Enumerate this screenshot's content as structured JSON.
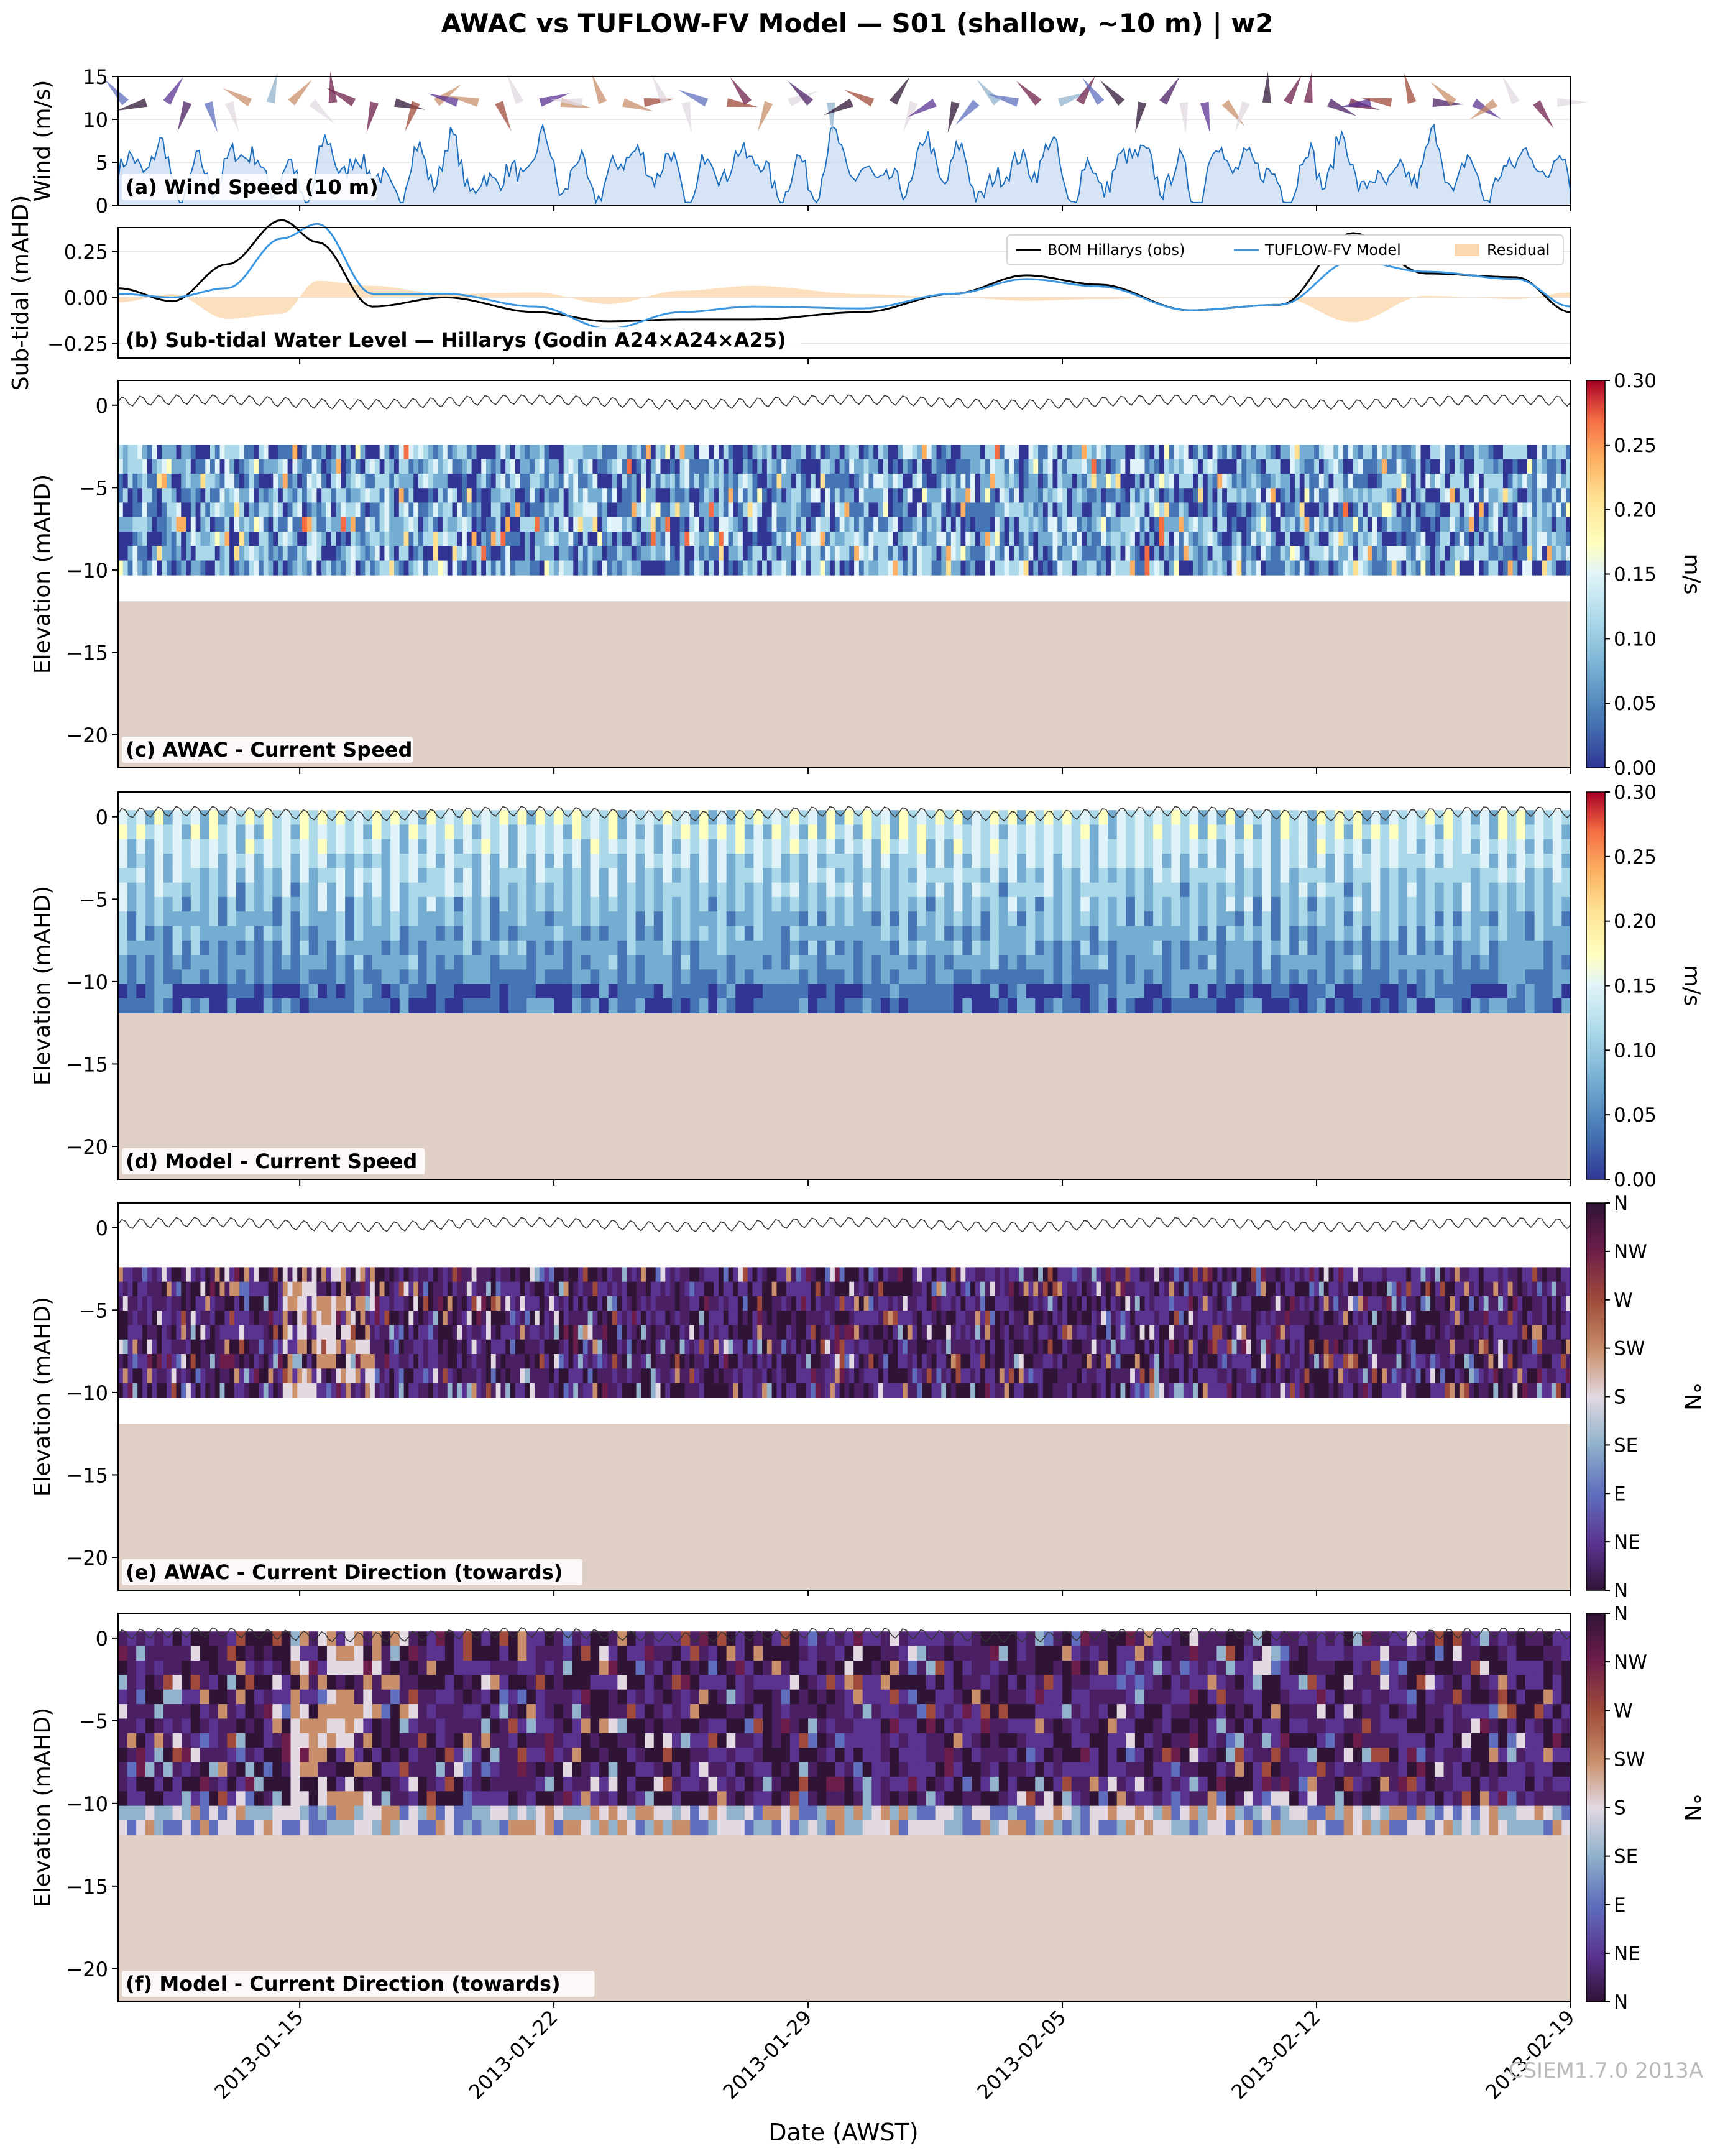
{
  "figure": {
    "title": "AWAC vs TUFLOW-FV Model — S01 (shallow, ~10 m) | w2",
    "xlabel": "Date (AWST)",
    "watermark": "CSIEM1.7.0 2013A",
    "x_ticks": [
      "2013-01-15",
      "2013-01-22",
      "2013-01-29",
      "2013-02-05",
      "2013-02-12",
      "2013-02-19"
    ],
    "x_range": [
      "2013-01-10",
      "2013-02-19"
    ]
  },
  "colors": {
    "wind_line": "#1f6fbf",
    "wind_fill": "#c6d9f1",
    "obs_line": "#000000",
    "model_line": "#3a96e0",
    "residual_fill": "#fcd9b0",
    "seabed": "#e0d0c5",
    "speed_colormap": "RdYlBu_r",
    "direction_colormap": "twilight_shifted"
  },
  "chart_data": [
    {
      "id": "a",
      "type": "area",
      "label": "(a) Wind Speed (10 m)",
      "ylabel": "Wind (m/s)",
      "ylim": [
        0,
        15
      ],
      "yticks": [
        "0",
        "5",
        "10",
        "15"
      ],
      "series": [
        {
          "values_summary": {
            "mean": 4.2,
            "max": 9.5,
            "min": 0.5
          }
        }
      ],
      "overlay": "wind direction arrows along top, colored by direction"
    },
    {
      "id": "b",
      "type": "line",
      "label": "(b) Sub-tidal Water Level — Hillarys (Godin A24×A24×A25)",
      "ylabel": "Sub-tidal (mAHD)",
      "ylim": [
        -0.33,
        0.38
      ],
      "yticks": [
        "0.25",
        "0.00",
        "-0.25"
      ],
      "legend": [
        "BOM Hillarys (obs)",
        "TUFLOW-FV Model",
        "Residual"
      ],
      "legend_position": "top-right",
      "x": [
        0,
        1.5,
        3,
        4.5,
        5.5,
        7,
        9,
        11.5,
        13.5,
        15.5,
        17.5,
        20.5,
        23,
        25,
        27,
        29.5,
        32,
        34,
        36,
        38.5,
        40
      ],
      "series": [
        {
          "name": "BOM Hillarys (obs)",
          "values": [
            0.05,
            -0.02,
            0.18,
            0.42,
            0.3,
            -0.05,
            0.0,
            -0.08,
            -0.13,
            -0.12,
            -0.12,
            -0.08,
            0.02,
            0.12,
            0.07,
            -0.07,
            -0.04,
            0.35,
            0.13,
            0.11,
            -0.08
          ]
        },
        {
          "name": "TUFLOW-FV Model",
          "values": [
            0.02,
            0.0,
            0.05,
            0.32,
            0.4,
            0.02,
            0.02,
            -0.05,
            -0.17,
            -0.08,
            -0.05,
            -0.06,
            0.02,
            0.1,
            0.06,
            -0.07,
            -0.04,
            0.2,
            0.14,
            0.1,
            -0.05
          ]
        }
      ]
    },
    {
      "id": "c",
      "type": "heatmap",
      "label": "(c) AWAC - Current Speed",
      "ylabel": "Elevation (mAHD)",
      "ylim": [
        -22,
        1.5
      ],
      "yticks": [
        "0",
        "-5",
        "-10",
        "-15",
        "-20"
      ],
      "colorbar": {
        "label": "m/s",
        "range": [
          0,
          0.3
        ],
        "ticks": [
          "0.30",
          "0.25",
          "0.20",
          "0.15",
          "0.10",
          "0.05",
          "0.00"
        ]
      },
      "data_depth_range": [
        -10.3,
        -2.4
      ],
      "seabed": -11.9
    },
    {
      "id": "d",
      "type": "heatmap",
      "label": "(d) Model - Current Speed",
      "ylabel": "Elevation (mAHD)",
      "ylim": [
        -22,
        1.5
      ],
      "yticks": [
        "0",
        "-5",
        "-10",
        "-15",
        "-20"
      ],
      "colorbar": {
        "label": "m/s",
        "range": [
          0,
          0.3
        ],
        "ticks": [
          "0.30",
          "0.25",
          "0.20",
          "0.15",
          "0.10",
          "0.05",
          "0.00"
        ]
      },
      "data_depth_range": [
        -11.9,
        0.4
      ],
      "seabed": -11.9
    },
    {
      "id": "e",
      "type": "heatmap",
      "label": "(e) AWAC - Current Direction (towards)",
      "ylabel": "Elevation (mAHD)",
      "ylim": [
        -22,
        1.5
      ],
      "yticks": [
        "0",
        "-5",
        "-10",
        "-15",
        "-20"
      ],
      "colorbar": {
        "label": "°N",
        "ticks": [
          "N",
          "NW",
          "W",
          "SW",
          "S",
          "SE",
          "E",
          "NE",
          "N"
        ]
      },
      "data_depth_range": [
        -10.3,
        -2.4
      ],
      "seabed": -11.9
    },
    {
      "id": "f",
      "type": "heatmap",
      "label": "(f) Model - Current Direction (towards)",
      "ylabel": "Elevation (mAHD)",
      "ylim": [
        -22,
        1.5
      ],
      "yticks": [
        "0",
        "-5",
        "-10",
        "-15",
        "-20"
      ],
      "colorbar": {
        "label": "°N",
        "ticks": [
          "N",
          "NW",
          "W",
          "SW",
          "S",
          "SE",
          "E",
          "NE",
          "N"
        ]
      },
      "data_depth_range": [
        -11.9,
        0.4
      ],
      "seabed": -11.9
    }
  ]
}
